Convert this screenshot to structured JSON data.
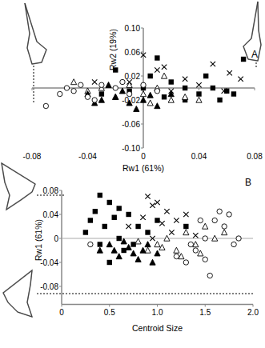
{
  "chart_data": [
    {
      "type": "scatter",
      "x_label": "Rw1 (61%)",
      "y_label": "Rw2 (19%)",
      "annotations": [
        "A"
      ],
      "xlim": [
        -0.08,
        0.08
      ],
      "ylim": [
        -0.1,
        0.1
      ],
      "xticks": [
        -0.08,
        -0.04,
        0,
        0.04,
        0.08
      ],
      "yticks": [
        {
          "value": 0.1,
          "label": "0.10"
        },
        0.06,
        0.02,
        -0.02,
        -0.06,
        {
          "value": -0.1,
          "label": "-0.10"
        }
      ],
      "grid": false,
      "series": [
        {
          "marker": "square",
          "color": "#000000",
          "x": [
            0.072,
            -0.02,
            0.01,
            0.005,
            0.02,
            0.03,
            0.04,
            0.05,
            0.06,
            0.065,
            -0.01,
            0.015,
            0.03,
            -0.03,
            0.045,
            0.055,
            0.0
          ],
          "values": [
            0.048,
            0.03,
            0.05,
            0.02,
            0.01,
            0.0,
            -0.01,
            0.0,
            -0.005,
            -0.01,
            -0.005,
            -0.015,
            -0.02,
            -0.01,
            0.02,
            -0.02,
            0.0
          ]
        },
        {
          "marker": "x",
          "color": "#000000",
          "x": [
            0.0,
            0.05,
            0.062,
            0.01,
            0.03,
            -0.01,
            0.02,
            0.04,
            -0.035,
            0.07,
            0.015,
            0.058
          ],
          "values": [
            0.055,
            0.04,
            0.025,
            0.03,
            0.015,
            0.01,
            -0.005,
            0.005,
            0.01,
            0.015,
            0.035,
            -0.005
          ]
        },
        {
          "marker": "triangle-open",
          "color": "#000000",
          "x": [
            -0.05,
            -0.03,
            -0.01,
            0.0,
            0.01,
            0.02,
            0.03,
            0.015,
            -0.02,
            0.04,
            0.005,
            -0.04
          ],
          "values": [
            0.01,
            0.0,
            0.005,
            -0.01,
            0.0,
            -0.02,
            -0.015,
            0.02,
            -0.015,
            -0.02,
            -0.025,
            -0.005
          ]
        },
        {
          "marker": "triangle",
          "color": "#000000",
          "x": [
            -0.04,
            -0.03,
            -0.02,
            -0.01,
            0.0,
            0.01,
            -0.015,
            -0.025,
            0.005,
            -0.035,
            0.02,
            -0.005
          ],
          "values": [
            -0.01,
            -0.02,
            -0.015,
            -0.025,
            -0.02,
            -0.03,
            -0.005,
            0.005,
            -0.012,
            -0.025,
            -0.01,
            -0.035
          ]
        },
        {
          "marker": "circle-open",
          "color": "#000000",
          "x": [
            -0.07,
            -0.06,
            -0.05,
            -0.045,
            -0.04,
            -0.03,
            -0.02,
            -0.01,
            0.0,
            -0.055,
            -0.035,
            0.01,
            -0.015
          ],
          "values": [
            -0.03,
            -0.01,
            -0.005,
            0.005,
            -0.015,
            0.005,
            0.0,
            -0.01,
            0.005,
            0.0,
            -0.02,
            -0.005,
            0.01
          ]
        }
      ]
    },
    {
      "type": "scatter",
      "x_label": "Centroid Size",
      "y_label": "Rw1 (61%)",
      "annotations": [
        "B"
      ],
      "xlim": [
        0,
        2
      ],
      "ylim": [
        -0.11,
        0.08
      ],
      "xticks": [
        0,
        0.5,
        {
          "value": 1,
          "label": "1.0"
        },
        1.5,
        {
          "value": 2,
          "label": "2.0"
        }
      ],
      "yticks": [
        0.08,
        0.04,
        0,
        -0.04,
        -0.08
      ],
      "grid": false,
      "series": [
        {
          "marker": "square",
          "color": "#000000",
          "x": [
            0.4,
            0.5,
            0.35,
            0.6,
            0.3,
            0.45,
            0.55,
            0.7,
            0.8,
            0.9,
            0.4,
            0.6,
            0.65,
            0.5,
            0.25,
            1.0,
            1.3,
            0.75
          ],
          "values": [
            0.072,
            0.06,
            0.045,
            0.05,
            0.03,
            0.02,
            0.035,
            0.04,
            0.02,
            0.01,
            -0.01,
            0.0,
            -0.02,
            -0.04,
            0.01,
            0.03,
            0.02,
            -0.01
          ]
        },
        {
          "marker": "x",
          "color": "#000000",
          "x": [
            0.9,
            0.95,
            1.0,
            1.1,
            0.85,
            1.2,
            1.05,
            0.7,
            1.3,
            1.15,
            0.95,
            1.4
          ],
          "values": [
            0.07,
            0.055,
            0.06,
            0.045,
            0.035,
            0.03,
            0.025,
            0.02,
            0.04,
            0.01,
            0.0,
            0.005
          ]
        },
        {
          "marker": "triangle-open",
          "color": "#000000",
          "x": [
            1.0,
            1.1,
            1.2,
            1.3,
            1.4,
            1.5,
            1.6,
            1.25,
            0.9,
            1.45,
            1.05,
            1.7,
            0.8
          ],
          "values": [
            -0.01,
            0.0,
            -0.02,
            0.01,
            -0.01,
            0.02,
            0.0,
            -0.03,
            -0.02,
            -0.025,
            -0.015,
            0.01,
            -0.005
          ]
        },
        {
          "marker": "triangle",
          "color": "#000000",
          "x": [
            0.5,
            0.55,
            0.6,
            0.7,
            0.75,
            0.8,
            0.85,
            0.9,
            1.0,
            0.65,
            0.4,
            0.95
          ],
          "values": [
            -0.01,
            -0.02,
            -0.03,
            -0.015,
            -0.025,
            -0.035,
            -0.02,
            -0.01,
            -0.025,
            -0.005,
            -0.02,
            -0.04
          ]
        },
        {
          "marker": "circle-open",
          "color": "#000000",
          "x": [
            1.2,
            1.3,
            1.4,
            1.5,
            1.55,
            1.6,
            1.65,
            1.7,
            1.8,
            1.85,
            1.5,
            1.35,
            1.75,
            1.45,
            0.3
          ],
          "values": [
            -0.03,
            -0.04,
            -0.02,
            -0.035,
            -0.062,
            0.03,
            0.045,
            0.02,
            -0.01,
            0.0,
            0.0,
            -0.01,
            0.04,
            0.03,
            -0.01
          ]
        }
      ]
    }
  ]
}
